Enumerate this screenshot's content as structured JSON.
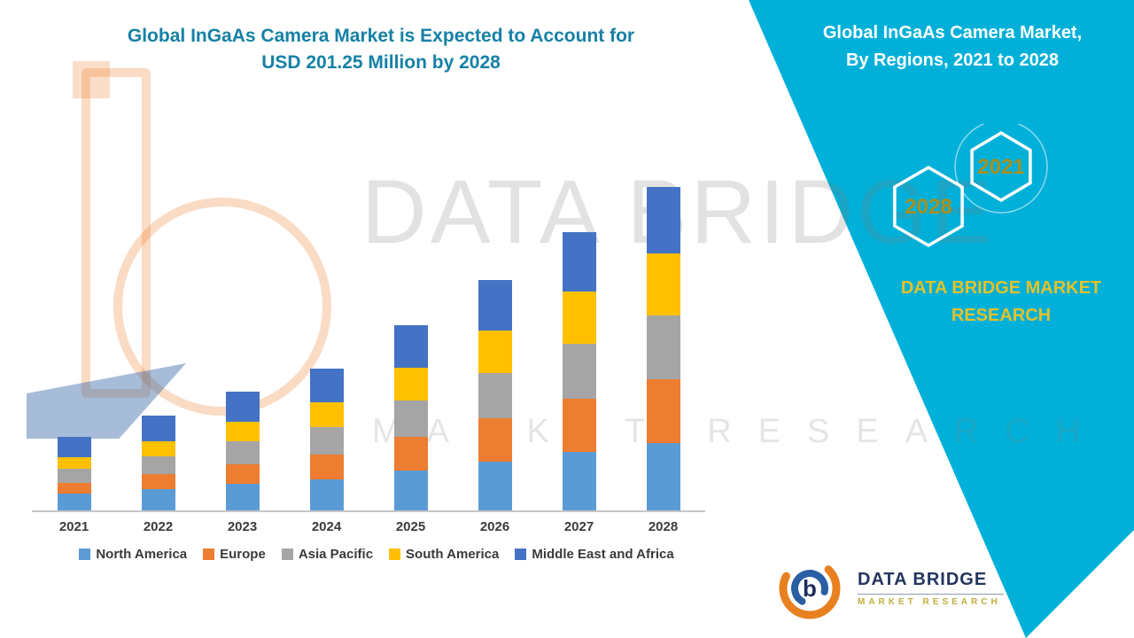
{
  "header": {
    "title_line1": "Global InGaAs Camera Market is Expected to Account for",
    "title_line2": "USD 201.25 Million by 2028",
    "title_color": "#1581a5"
  },
  "side_panel": {
    "bg_color": "#00b0d8",
    "title_line1": "Global InGaAs Camera Market,",
    "title_line2": "By Regions, 2021 to 2028",
    "hexagons": [
      {
        "label": "2028"
      },
      {
        "label": "2021"
      }
    ],
    "hexagon_label_color": "#a8901e",
    "brand_line1": "DATA BRIDGE MARKET",
    "brand_line2": "RESEARCH",
    "brand_color": "#e3c229"
  },
  "watermark": {
    "line1": "DATA BRIDGE",
    "line2": "MARKET RESEARCH"
  },
  "footer_logo": {
    "brand": "DATA BRIDGE",
    "tagline": "MARKET RESEARCH",
    "navy_color": "#23355f"
  },
  "chart_data": {
    "type": "bar",
    "stacked": true,
    "title": "Global InGaAs Camera Market is Expected to Account for USD 201.25 Million by 2028",
    "units": "USD Million",
    "xlabel": "",
    "ylabel": "",
    "ylim": [
      0,
      210
    ],
    "grid": false,
    "legend_position": "bottom",
    "categories": [
      "2021",
      "2022",
      "2023",
      "2024",
      "2025",
      "2026",
      "2027",
      "2028"
    ],
    "series": [
      {
        "name": "North America",
        "color": "#5b9bd5",
        "values": [
          10.4,
          13.3,
          16.4,
          19.4,
          24.9,
          30.6,
          36.3,
          41.7
        ]
      },
      {
        "name": "Europe",
        "color": "#ed7d31",
        "values": [
          6.9,
          9.3,
          12.2,
          15.2,
          20.7,
          26.7,
          33.2,
          39.8
        ]
      },
      {
        "name": "Asia Pacific",
        "color": "#a5a5a5",
        "values": [
          8.6,
          11.2,
          14.2,
          17.2,
          22.6,
          28.3,
          34.2,
          40.0
        ]
      },
      {
        "name": "South America",
        "color": "#ffc000",
        "values": [
          7.0,
          9.4,
          12.3,
          15.2,
          20.5,
          26.4,
          32.5,
          38.2
        ]
      },
      {
        "name": "Middle East and Africa",
        "color": "#4472c4",
        "values": [
          12.9,
          15.8,
          18.8,
          21.4,
          26.7,
          31.6,
          36.7,
          41.55
        ]
      }
    ],
    "annotations": [],
    "totals_by_year": [
      45.8,
      59.0,
      73.9,
      88.4,
      115.4,
      143.6,
      172.9,
      201.25
    ]
  }
}
